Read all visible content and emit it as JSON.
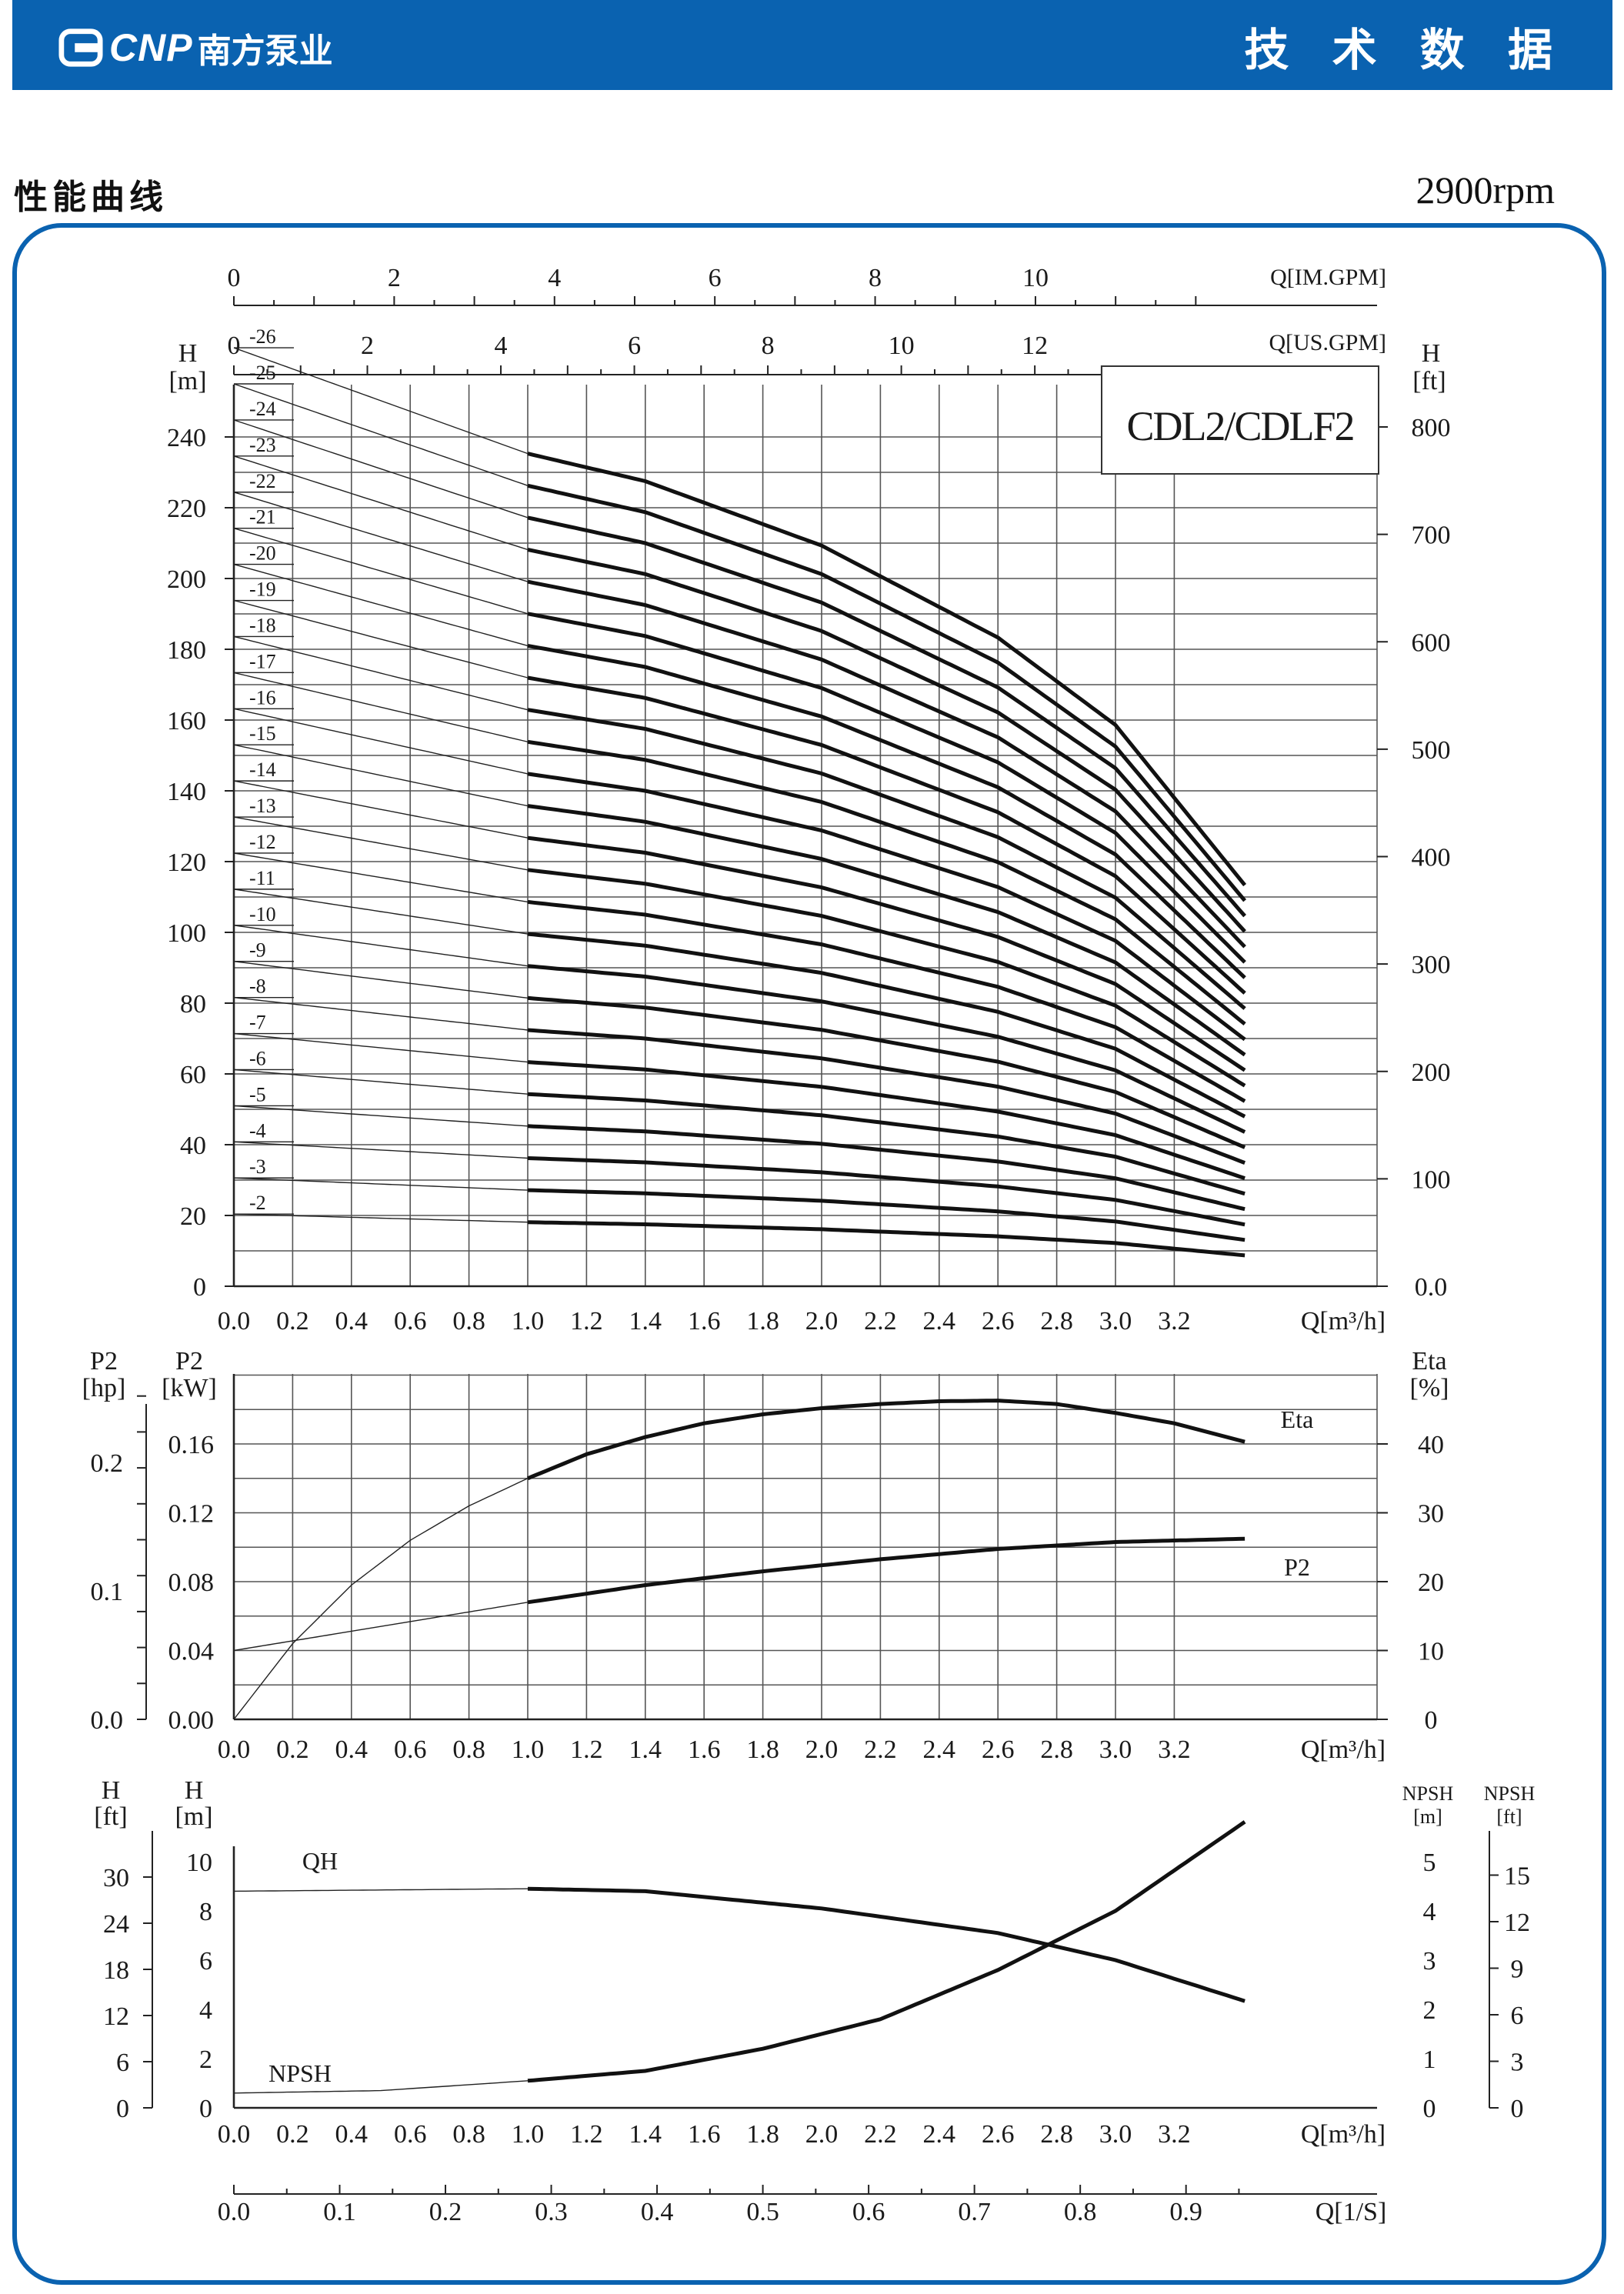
{
  "header": {
    "brand": "CNP",
    "brand_cn": "南方泵业",
    "right_title": "技 术 数 据",
    "color": "#0a62b0"
  },
  "section_title": "性能曲线",
  "rpm": "2900rpm",
  "chart_data": [
    {
      "type": "line",
      "title": "CDL2/CDLF2",
      "xlabel": "Q[m³/h]",
      "ylabel": "H [m]",
      "ylabel_right": "H [ft]",
      "top_axes": [
        {
          "label": "Q[IM.GPM]",
          "ticks": [
            "0",
            "2",
            "4",
            "6",
            "8",
            "10"
          ]
        },
        {
          "label": "Q[US.GPM]",
          "ticks": [
            "0",
            "2",
            "4",
            "6",
            "8",
            "10",
            "12"
          ]
        }
      ],
      "xlim": [
        0,
        3.8
      ],
      "ylim": [
        0,
        260
      ],
      "x_ticks": [
        "0.0",
        "0.2",
        "0.4",
        "0.6",
        "0.8",
        "1.0",
        "1.2",
        "1.4",
        "1.6",
        "1.8",
        "2.0",
        "2.2",
        "2.4",
        "2.6",
        "2.8",
        "3.0",
        "3.2"
      ],
      "y_ticks": [
        "0",
        "20",
        "40",
        "60",
        "80",
        "100",
        "120",
        "140",
        "160",
        "180",
        "200",
        "220",
        "240"
      ],
      "y_ticks_right": [
        "0.0",
        "100",
        "200",
        "300",
        "400",
        "500",
        "600",
        "700",
        "800"
      ],
      "y_right_max": 853,
      "per_stage_curve": {
        "x": [
          0.0,
          1.0,
          1.4,
          2.0,
          2.6,
          3.0,
          3.45
        ],
        "h": [
          10.2,
          9.05,
          8.75,
          8.05,
          7.05,
          6.1,
          4.32
        ]
      },
      "stages": [
        2,
        3,
        4,
        5,
        6,
        7,
        8,
        9,
        10,
        11,
        12,
        13,
        14,
        15,
        16,
        17,
        18,
        19,
        20,
        21,
        22,
        23,
        24,
        25,
        26
      ],
      "stage_labels": [
        "-2",
        "-3",
        "-4",
        "-5",
        "-6",
        "-7",
        "-8",
        "-9",
        "-10",
        "-11",
        "-12",
        "-13",
        "-14",
        "-15",
        "-16",
        "-17",
        "-18",
        "-19",
        "-20",
        "-21",
        "-22",
        "-23",
        "-24",
        "-25",
        "-26"
      ],
      "grid": true
    },
    {
      "type": "line",
      "xlabel": "Q[m³/h]",
      "ylabel": "P2 [kW]",
      "ylabel_far_left": "P2 [hp]",
      "ylabel_right": "Eta [%]",
      "xlim": [
        0,
        3.8
      ],
      "ylim": [
        0,
        0.2
      ],
      "x_ticks": [
        "0.0",
        "0.2",
        "0.4",
        "0.6",
        "0.8",
        "1.0",
        "1.2",
        "1.4",
        "1.6",
        "1.8",
        "2.0",
        "2.2",
        "2.4",
        "2.6",
        "2.8",
        "3.0",
        "3.2"
      ],
      "y_ticks": [
        "0.00",
        "0.04",
        "0.08",
        "0.12",
        "0.16"
      ],
      "y_ticks_hp": [
        "0.0",
        "0.1",
        "0.2"
      ],
      "y_ticks_right": [
        "0",
        "10",
        "20",
        "30",
        "40"
      ],
      "series": [
        {
          "name": "Eta",
          "unit": "%",
          "x": [
            0.0,
            0.2,
            0.4,
            0.6,
            0.8,
            1.0,
            1.2,
            1.4,
            1.6,
            1.8,
            2.0,
            2.2,
            2.4,
            2.6,
            2.8,
            3.0,
            3.2,
            3.45
          ],
          "y": [
            0.0,
            11.0,
            19.5,
            26.0,
            31.0,
            35.0,
            38.5,
            41.0,
            43.0,
            44.3,
            45.2,
            45.8,
            46.2,
            46.3,
            45.8,
            44.5,
            43.0,
            40.2
          ]
        },
        {
          "name": "P2",
          "unit": "kW",
          "x": [
            0.0,
            0.5,
            1.0,
            1.4,
            1.8,
            2.2,
            2.6,
            3.0,
            3.45
          ],
          "y": [
            0.04,
            0.054,
            0.068,
            0.078,
            0.086,
            0.093,
            0.099,
            0.103,
            0.105
          ]
        }
      ],
      "grid": true
    },
    {
      "type": "line",
      "xlabel": "Q[m³/h]",
      "ylabel": "H [m]",
      "ylabel_far_left": "H [ft]",
      "ylabel_right": "NPSH [m]",
      "ylabel_far_right": "NPSH [ft]",
      "xlim": [
        0,
        3.8
      ],
      "ylim": [
        0,
        10
      ],
      "x_ticks": [
        "0.0",
        "0.2",
        "0.4",
        "0.6",
        "0.8",
        "1.0",
        "1.2",
        "1.4",
        "1.6",
        "1.8",
        "2.0",
        "2.2",
        "2.4",
        "2.6",
        "2.8",
        "3.0",
        "3.2"
      ],
      "y_ticks": [
        "0",
        "2",
        "4",
        "6",
        "8",
        "10"
      ],
      "y_ticks_ft": [
        "0",
        "6",
        "12",
        "18",
        "24",
        "30"
      ],
      "y_ticks_right": [
        "0",
        "1",
        "2",
        "3",
        "4",
        "5"
      ],
      "y_ticks_right_ft": [
        "0",
        "3",
        "6",
        "9",
        "12",
        "15"
      ],
      "series": [
        {
          "name": "QH",
          "unit": "m",
          "x": [
            0.0,
            1.0,
            1.4,
            2.0,
            2.6,
            3.0,
            3.45
          ],
          "y": [
            8.8,
            8.9,
            8.8,
            8.1,
            7.1,
            6.0,
            4.3
          ]
        },
        {
          "name": "NPSH",
          "unit": "m",
          "x": [
            0.0,
            0.5,
            1.0,
            1.4,
            1.8,
            2.2,
            2.6,
            3.0,
            3.45
          ],
          "y": [
            0.3,
            0.35,
            0.55,
            0.75,
            1.2,
            1.8,
            2.8,
            4.0,
            5.85
          ]
        }
      ],
      "grid": false
    }
  ],
  "bottom_axis": {
    "label": "Q[1/S]",
    "ticks": [
      "0.0",
      "0.1",
      "0.2",
      "0.3",
      "0.4",
      "0.5",
      "0.6",
      "0.7",
      "0.8",
      "0.9"
    ]
  }
}
